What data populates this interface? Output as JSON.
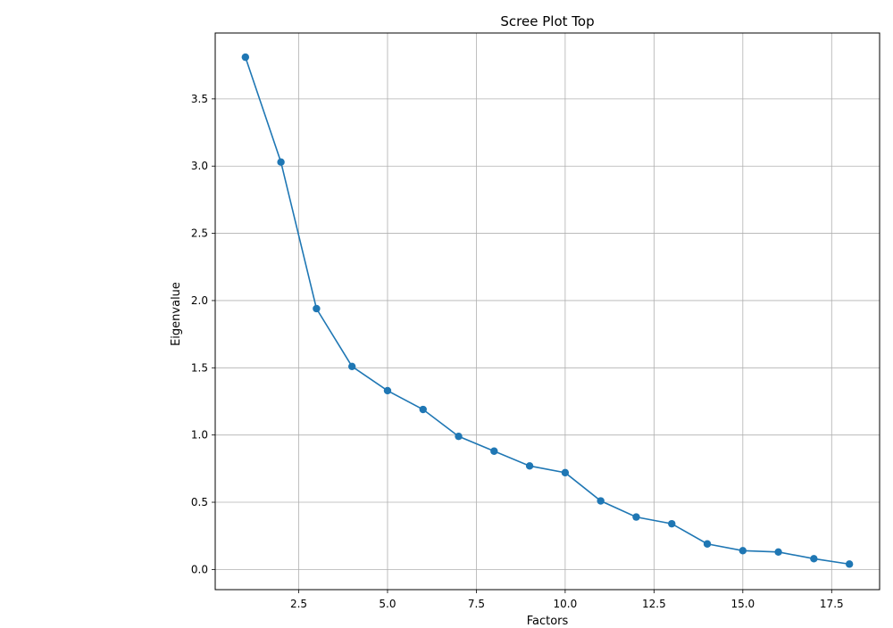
{
  "chart_data": {
    "type": "line",
    "title": "Scree Plot Top",
    "xlabel": "Factors",
    "ylabel": "Eigenvalue",
    "xlim": [
      0.15,
      18.85
    ],
    "ylim": [
      -0.15,
      3.99
    ],
    "xticks": [
      2.5,
      5.0,
      7.5,
      10.0,
      12.5,
      15.0,
      17.5
    ],
    "xtick_labels": [
      "2.5",
      "5.0",
      "7.5",
      "10.0",
      "12.5",
      "15.0",
      "17.5"
    ],
    "yticks": [
      0.0,
      0.5,
      1.0,
      1.5,
      2.0,
      2.5,
      3.0,
      3.5
    ],
    "ytick_labels": [
      "0.0",
      "0.5",
      "1.0",
      "1.5",
      "2.0",
      "2.5",
      "3.0",
      "3.5"
    ],
    "grid": true,
    "markers": "circle",
    "series": [
      {
        "color": "#1f77b4",
        "x": [
          1,
          2,
          3,
          4,
          5,
          6,
          7,
          8,
          9,
          10,
          11,
          12,
          13,
          14,
          15,
          16,
          17,
          18
        ],
        "y": [
          3.81,
          3.03,
          1.94,
          1.51,
          1.33,
          1.19,
          0.99,
          0.88,
          0.77,
          0.72,
          0.51,
          0.39,
          0.34,
          0.19,
          0.14,
          0.13,
          0.08,
          0.04
        ]
      }
    ]
  }
}
